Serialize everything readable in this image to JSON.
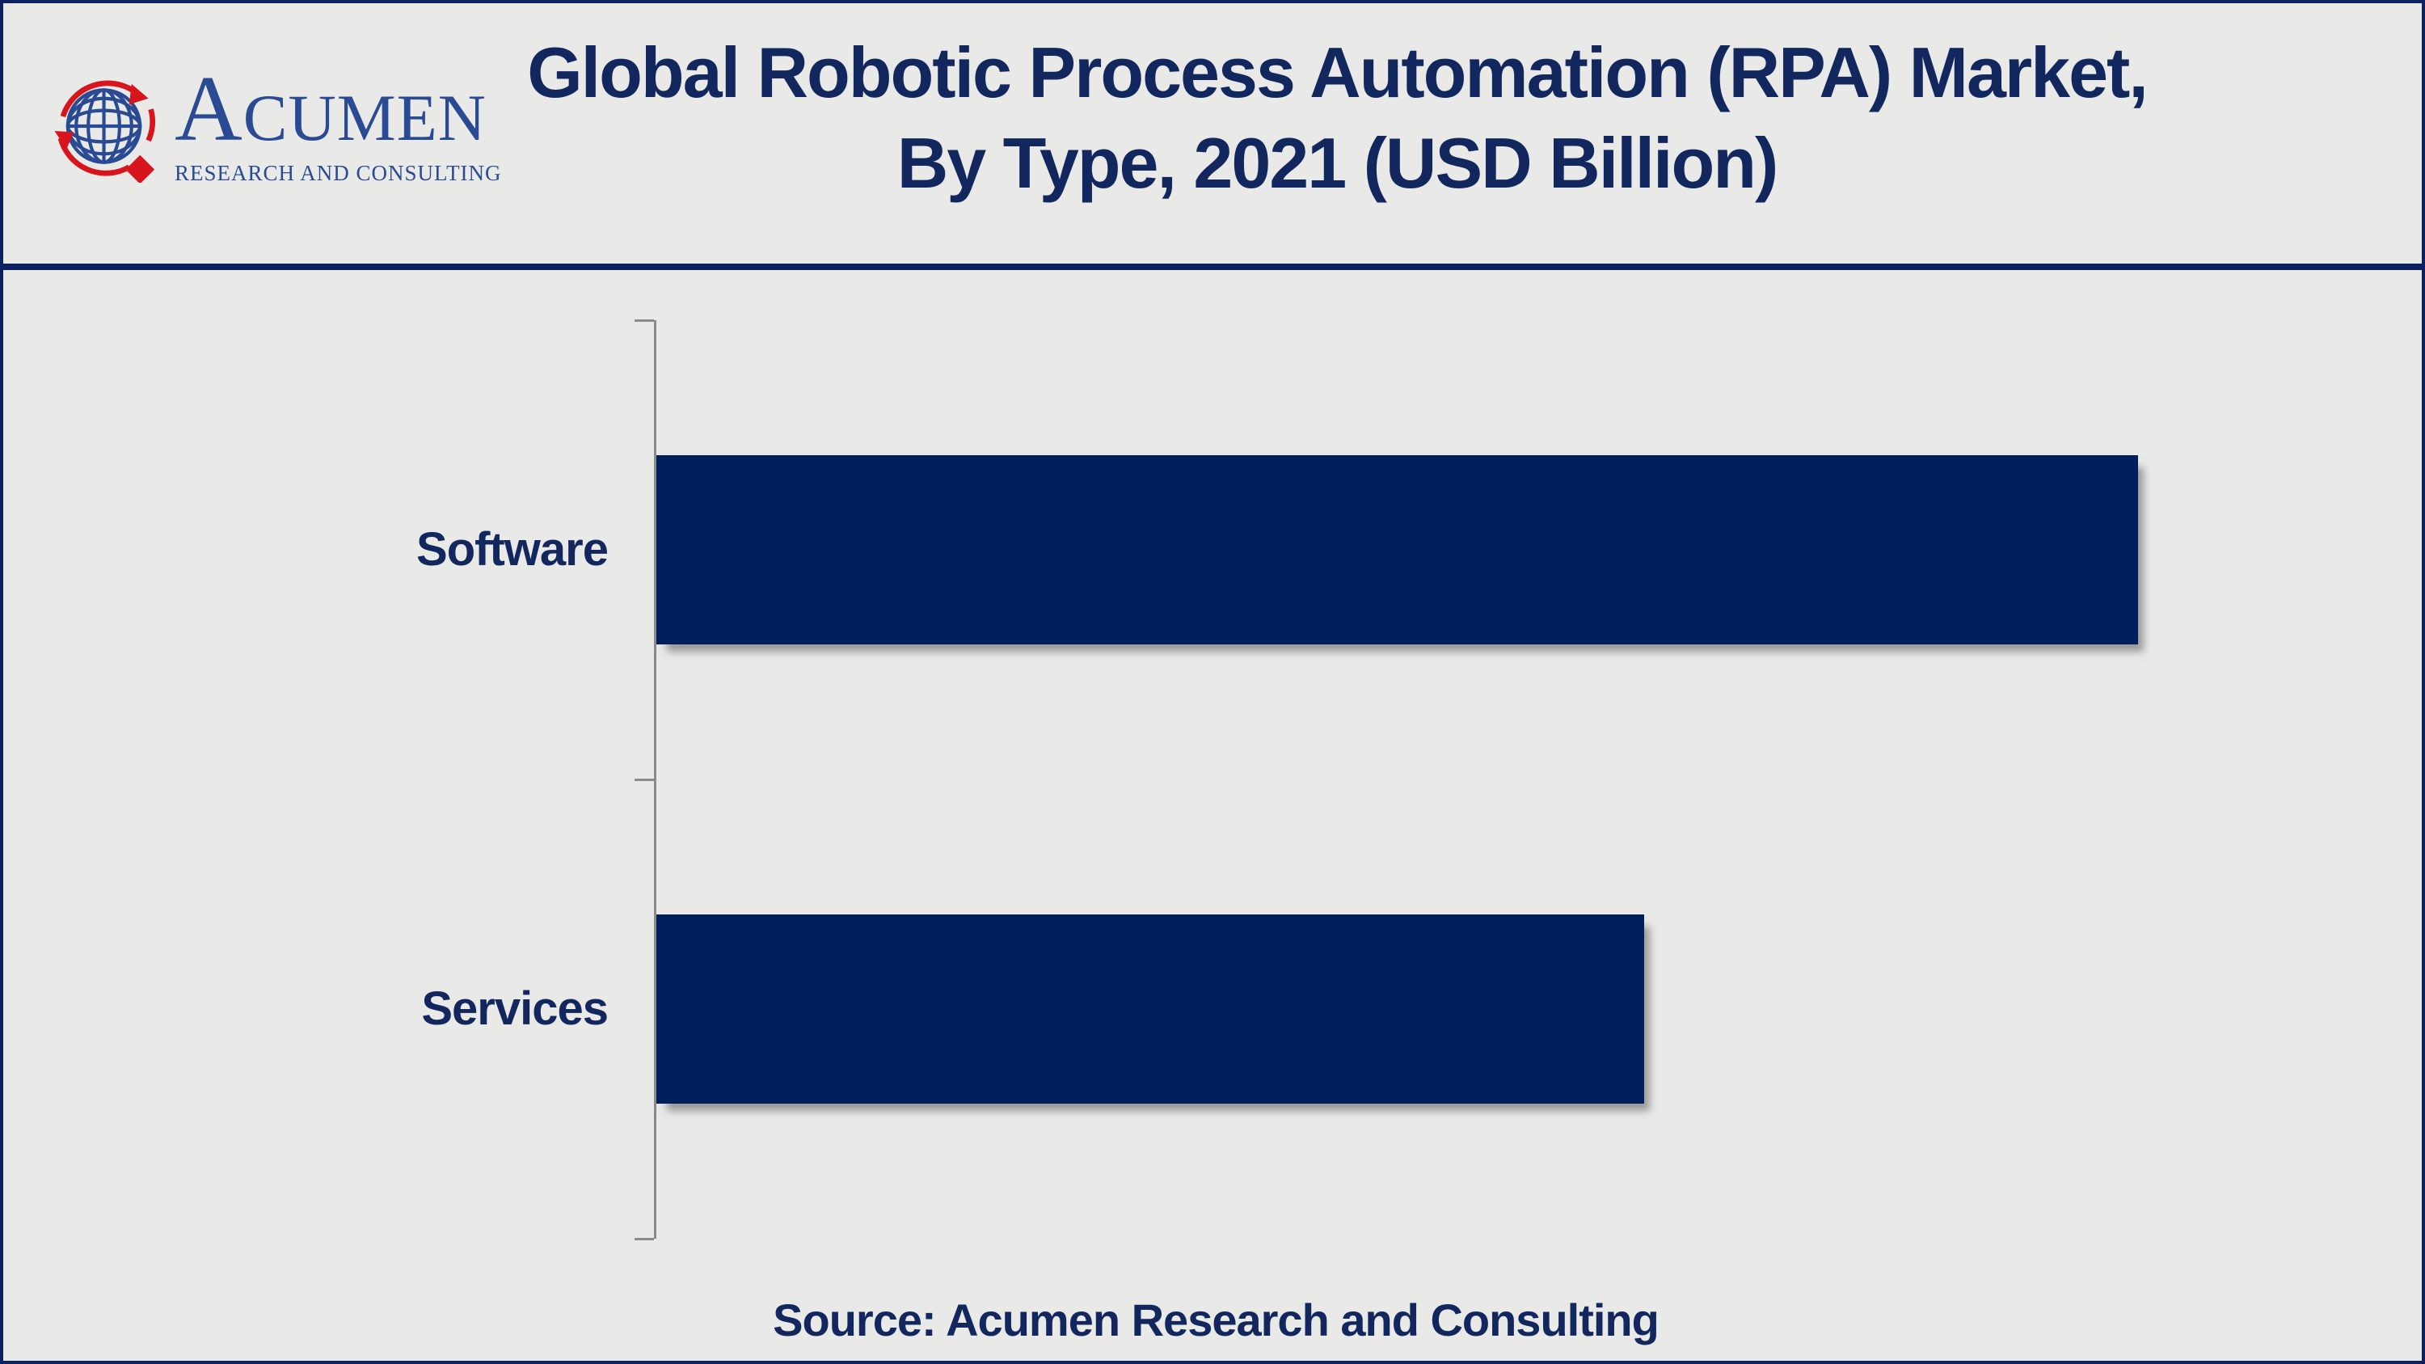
{
  "page": {
    "background_color": "#e9e9e8",
    "border_color": "#0b2161"
  },
  "header": {
    "logo": {
      "text_main": "ACUMEN",
      "text_sub": "RESEARCH AND CONSULTING",
      "blue": "#2a4b93",
      "red": "#d8141d"
    },
    "title_line1": "Global Robotic Process Automation (RPA) Market,",
    "title_line2": "By Type, 2021 (USD Billion)",
    "title_color": "#13275f"
  },
  "chart_data": {
    "type": "bar",
    "orientation": "horizontal",
    "title": "Global Robotic Process Automation (RPA) Market, By Type, 2021 (USD Billion)",
    "categories": [
      "Software",
      "Services"
    ],
    "values": [
      3.0,
      2.0
    ],
    "values_estimated_from_bar_lengths": true,
    "value_labels_shown": false,
    "units": "USD Billion",
    "xlabel": "",
    "ylabel": "",
    "xlim": [
      0,
      3.56
    ],
    "grid": false,
    "legend": false,
    "bar_color": "#021f5d",
    "axis_color": "#8a8a8a"
  },
  "footer": {
    "source_text": "Source: Acumen Research and Consulting"
  }
}
